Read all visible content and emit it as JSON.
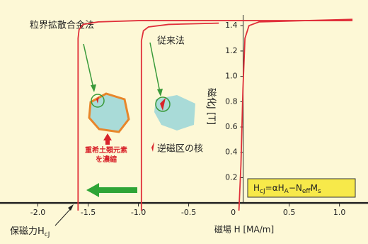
{
  "chart_data": {
    "type": "line",
    "xlim": [
      -2.25,
      1.27
    ],
    "ylim": [
      -0.1,
      1.53
    ],
    "xticks": [
      {
        "value": -2.0,
        "label": "-2.0"
      },
      -1.5,
      {
        "value": -1.0,
        "label": "-1.0"
      },
      -0.5,
      0,
      0.5,
      {
        "value": 1.0,
        "label": "1.0"
      }
    ],
    "yticks": [
      0.2,
      0.4,
      0.6,
      0.8,
      {
        "value": 1.0,
        "label": "1.0"
      },
      1.2,
      1.4
    ],
    "xlabel": "磁場 H [MA/m]",
    "ylabel": "磁化J [T]",
    "series": [
      {
        "color": "#e0303a",
        "x": [
          -1.6,
          -1.6,
          -1.59,
          -1.55,
          -1.4,
          -1.0,
          0,
          1.13
        ],
        "values": [
          -0.06,
          1.3,
          1.37,
          1.41,
          1.43,
          1.44,
          1.44,
          1.44
        ]
      },
      {
        "color": "#e0303a",
        "x": [
          -0.97,
          -0.97,
          -0.95,
          -0.9,
          -0.7,
          -0.2
        ],
        "values": [
          -0.06,
          1.28,
          1.36,
          1.39,
          1.41,
          1.42
        ]
      },
      {
        "color": "#e0303a",
        "x": [
          0.0,
          0.02,
          0.04,
          0.06,
          0.1,
          0.2,
          1.13
        ],
        "values": [
          -0.06,
          0.3,
          0.9,
          1.3,
          1.4,
          1.43,
          1.45
        ]
      }
    ],
    "annotations": {
      "diffusion": "粒界拡散合金法",
      "conventional": "従来法",
      "nucleus": "逆磁区の核",
      "enrich": [
        "重希土類元素",
        "を濃縮"
      ]
    },
    "coercivity": [
      "保磁力H",
      "cJ"
    ],
    "formula": [
      "H",
      "cJ",
      "=αH",
      "A",
      "−N",
      "eff",
      "M",
      "s"
    ]
  }
}
